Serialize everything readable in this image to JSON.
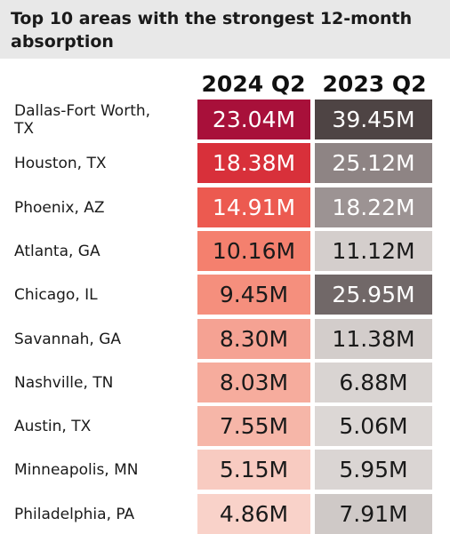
{
  "title": "Top 10 areas with the strongest 12-month absorption",
  "chart_data": {
    "type": "table",
    "title": "Top 10 areas with the strongest 12-month absorption",
    "columns": [
      "2024 Q2",
      "2023 Q2"
    ],
    "unit": "M",
    "rows": [
      {
        "area": "Dallas-Fort Worth, TX",
        "label": "Dallas-Fort Worth,\nTX",
        "v2024": 23.04,
        "d2024": "23.04M",
        "v2023": 39.45,
        "d2023": "39.45M"
      },
      {
        "area": "Houston, TX",
        "label": "Houston, TX",
        "v2024": 18.38,
        "d2024": "18.38M",
        "v2023": 25.12,
        "d2023": "25.12M"
      },
      {
        "area": "Phoenix, AZ",
        "label": "Phoenix, AZ",
        "v2024": 14.91,
        "d2024": "14.91M",
        "v2023": 18.22,
        "d2023": "18.22M"
      },
      {
        "area": "Atlanta, GA",
        "label": "Atlanta, GA",
        "v2024": 10.16,
        "d2024": "10.16M",
        "v2023": 11.12,
        "d2023": "11.12M"
      },
      {
        "area": "Chicago, IL",
        "label": "Chicago, IL",
        "v2024": 9.45,
        "d2024": "9.45M",
        "v2023": 25.95,
        "d2023": "25.95M"
      },
      {
        "area": "Savannah, GA",
        "label": "Savannah, GA",
        "v2024": 8.3,
        "d2024": "8.30M",
        "v2023": 11.38,
        "d2023": "11.38M"
      },
      {
        "area": "Nashville, TN",
        "label": "Nashville, TN",
        "v2024": 8.03,
        "d2024": "8.03M",
        "v2023": 6.88,
        "d2023": "6.88M"
      },
      {
        "area": "Austin, TX",
        "label": "Austin, TX",
        "v2024": 7.55,
        "d2024": "7.55M",
        "v2023": 5.06,
        "d2023": "5.06M"
      },
      {
        "area": "Minneapolis, MN",
        "label": "Minneapolis, MN",
        "v2024": 5.15,
        "d2024": "5.15M",
        "v2023": 5.95,
        "d2023": "5.95M"
      },
      {
        "area": "Philadelphia, PA",
        "label": "Philadelphia, PA",
        "v2024": 4.86,
        "d2024": "4.86M",
        "v2023": 7.91,
        "d2023": "7.91M"
      }
    ]
  },
  "colors": {
    "c2024": [
      "#a8103a",
      "#d8303a",
      "#ec5a50",
      "#f4806e",
      "#f58f7d",
      "#f5a293",
      "#f6ac9d",
      "#f6b6a8",
      "#f8cbc1",
      "#f9d2c9"
    ],
    "c2023": [
      "#4e4444",
      "#8e8484",
      "#9c9393",
      "#d4cecc",
      "#716868",
      "#d3cdcb",
      "#d9d4d2",
      "#dcd7d5",
      "#dad5d3",
      "#cfc9c7"
    ],
    "light_text": "#ffffff",
    "dark_text": "#1a1a1a"
  }
}
